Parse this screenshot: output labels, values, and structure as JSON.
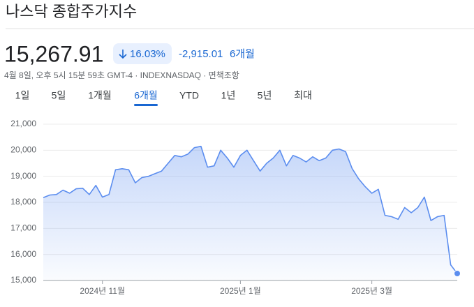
{
  "header": {
    "title": "나스닥 종합주가지수",
    "price": "15,267.91",
    "change_percent": "16.03%",
    "change": "-2,915.01",
    "period": "6개월",
    "timestamp": "4월 8일, 오후 5시 15분 59초 GMT-4 · INDEXNASDAQ · 면책조항"
  },
  "tabs": {
    "items": [
      "1일",
      "5일",
      "1개월",
      "6개월",
      "YTD",
      "1년",
      "5년",
      "최대"
    ],
    "selected": 3
  },
  "chart_data": {
    "type": "line",
    "categories": [
      null,
      null,
      null,
      null,
      null,
      null,
      null,
      null,
      null,
      "2024년 11월",
      null,
      null,
      null,
      null,
      null,
      null,
      null,
      null,
      null,
      null,
      null,
      null,
      null,
      null,
      null,
      null,
      null,
      null,
      null,
      null,
      "2025년 1월",
      null,
      null,
      null,
      null,
      null,
      null,
      null,
      null,
      null,
      null,
      null,
      null,
      null,
      null,
      null,
      null,
      null,
      null,
      null,
      "2025년 3월",
      null,
      null,
      null,
      null,
      null,
      null,
      null,
      null,
      null,
      null,
      null,
      null,
      null
    ],
    "values": [
      18182.92,
      18280,
      18300,
      18470,
      18350,
      18520,
      18540,
      18300,
      18650,
      18200,
      18300,
      19250,
      19290,
      19250,
      18750,
      18950,
      19000,
      19100,
      19200,
      19500,
      19800,
      19750,
      19850,
      20100,
      20150,
      19350,
      19400,
      20000,
      19700,
      19350,
      19800,
      20000,
      19600,
      19200,
      19500,
      19700,
      20000,
      19400,
      19800,
      19700,
      19550,
      19750,
      19600,
      19700,
      20000,
      20050,
      19950,
      19300,
      18900,
      18600,
      18350,
      18500,
      17500,
      17450,
      17350,
      17800,
      17600,
      17800,
      18200,
      17300,
      17450,
      17500,
      15600,
      15267.91
    ],
    "color": "#5b8def",
    "ylim": [
      15000,
      21000
    ],
    "yticks": [
      {
        "value": 15000,
        "label": "15,000"
      },
      {
        "value": 16000,
        "label": "16,000"
      },
      {
        "value": 17000,
        "label": "17,000"
      },
      {
        "value": 18000,
        "label": "18,000"
      },
      {
        "value": 19000,
        "label": "19,000"
      },
      {
        "value": 20000,
        "label": "20,000"
      },
      {
        "value": 21000,
        "label": "21,000"
      }
    ],
    "grid": true
  }
}
